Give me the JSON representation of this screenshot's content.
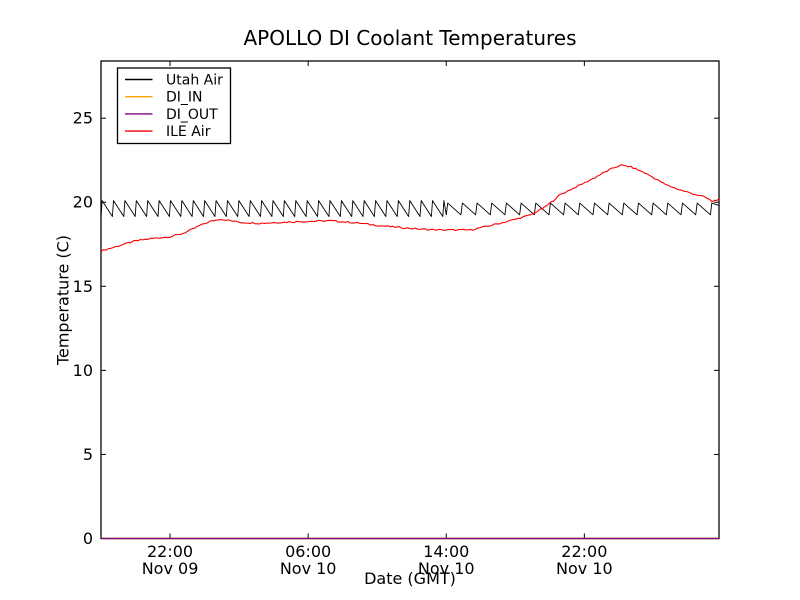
{
  "chart_data": {
    "type": "line",
    "title": "APOLLO DI Coolant Temperatures",
    "xlabel": "Date (GMT)",
    "ylabel": "Temperature (C)",
    "grid": false,
    "background": "#ffffff",
    "xlim_hours": [
      0,
      35.8
    ],
    "ylim": [
      0,
      28.4
    ],
    "yticks": [
      0,
      5,
      10,
      15,
      20,
      25
    ],
    "xticks": [
      {
        "hour": 4,
        "line1": "22:00",
        "line2": "Nov 09"
      },
      {
        "hour": 12,
        "line1": "06:00",
        "line2": "Nov 10"
      },
      {
        "hour": 20,
        "line1": "14:00",
        "line2": "Nov 10"
      },
      {
        "hour": 28,
        "line1": "22:00",
        "line2": "Nov 10"
      }
    ],
    "legend": {
      "position": "upper-left",
      "entries": [
        {
          "label": "Utah Air",
          "color": "#000000"
        },
        {
          "label": "DI_IN",
          "color": "#ffa500"
        },
        {
          "label": "DI_OUT",
          "color": "#800080"
        },
        {
          "label": "ILE Air",
          "color": "#ff0000"
        }
      ]
    },
    "series": [
      {
        "name": "Utah Air",
        "color": "#000000",
        "type": "sawtooth",
        "description": "thermostat-cycling sawtooth around 19.1-20.1 C across full range",
        "segments": [
          {
            "h0": 0,
            "h1": 20,
            "period": 0.66,
            "low": 19.15,
            "high": 20.1
          },
          {
            "h0": 20,
            "h1": 35.8,
            "period": 0.85,
            "low": 19.25,
            "high": 19.95
          }
        ]
      },
      {
        "name": "DI_IN",
        "color": "#ffa500",
        "type": "constant",
        "value": 0
      },
      {
        "name": "DI_OUT",
        "color": "#800080",
        "type": "constant",
        "value": 0
      },
      {
        "name": "ILE Air",
        "color": "#ff0000",
        "type": "points",
        "points": [
          [
            0,
            17.1
          ],
          [
            1,
            17.4
          ],
          [
            2,
            17.7
          ],
          [
            3,
            17.85
          ],
          [
            4,
            17.95
          ],
          [
            4.6,
            18.1
          ],
          [
            5,
            18.25
          ],
          [
            5.7,
            18.6
          ],
          [
            6.3,
            18.85
          ],
          [
            6.9,
            19.0
          ],
          [
            7.5,
            18.9
          ],
          [
            8.1,
            18.8
          ],
          [
            9.2,
            18.75
          ],
          [
            10.3,
            18.8
          ],
          [
            11.5,
            18.85
          ],
          [
            13.3,
            18.9
          ],
          [
            15,
            18.75
          ],
          [
            16.2,
            18.6
          ],
          [
            17.3,
            18.5
          ],
          [
            18.5,
            18.4
          ],
          [
            19.7,
            18.35
          ],
          [
            21.4,
            18.35
          ],
          [
            22.5,
            18.6
          ],
          [
            23.7,
            18.9
          ],
          [
            24.9,
            19.25
          ],
          [
            25.7,
            19.7
          ],
          [
            26.2,
            20.1
          ],
          [
            26.6,
            20.45
          ],
          [
            27.5,
            20.9
          ],
          [
            28.3,
            21.3
          ],
          [
            29.2,
            21.8
          ],
          [
            29.7,
            22.05
          ],
          [
            30.1,
            22.2
          ],
          [
            30.7,
            22.1
          ],
          [
            31.5,
            21.75
          ],
          [
            32.2,
            21.35
          ],
          [
            32.7,
            21.05
          ],
          [
            33.5,
            20.75
          ],
          [
            34.3,
            20.5
          ],
          [
            35,
            20.3
          ],
          [
            35.4,
            20.05
          ],
          [
            35.8,
            20.2
          ]
        ]
      }
    ]
  }
}
